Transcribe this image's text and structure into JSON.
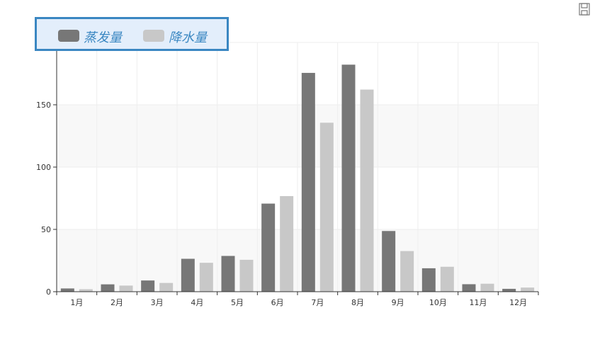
{
  "chart_data": {
    "type": "bar",
    "categories": [
      "1月",
      "2月",
      "3月",
      "4月",
      "5月",
      "6月",
      "7月",
      "8月",
      "9月",
      "10月",
      "11月",
      "12月"
    ],
    "series": [
      {
        "name": "蒸发量",
        "color": "#777777",
        "values": [
          2.6,
          5.9,
          9.0,
          26.4,
          28.7,
          70.7,
          175.6,
          182.2,
          48.7,
          18.8,
          6.0,
          2.3
        ]
      },
      {
        "name": "降水量",
        "color": "#c8c8c8",
        "values": [
          2.0,
          4.9,
          7.0,
          23.2,
          25.6,
          76.7,
          135.6,
          162.2,
          32.6,
          20.0,
          6.4,
          3.3
        ]
      }
    ],
    "ylim": [
      0,
      200
    ],
    "yticks": [
      0,
      50,
      100,
      150
    ],
    "grid": true,
    "legend_position": "top-left"
  },
  "toolbox": {
    "icon": "save-icon"
  }
}
